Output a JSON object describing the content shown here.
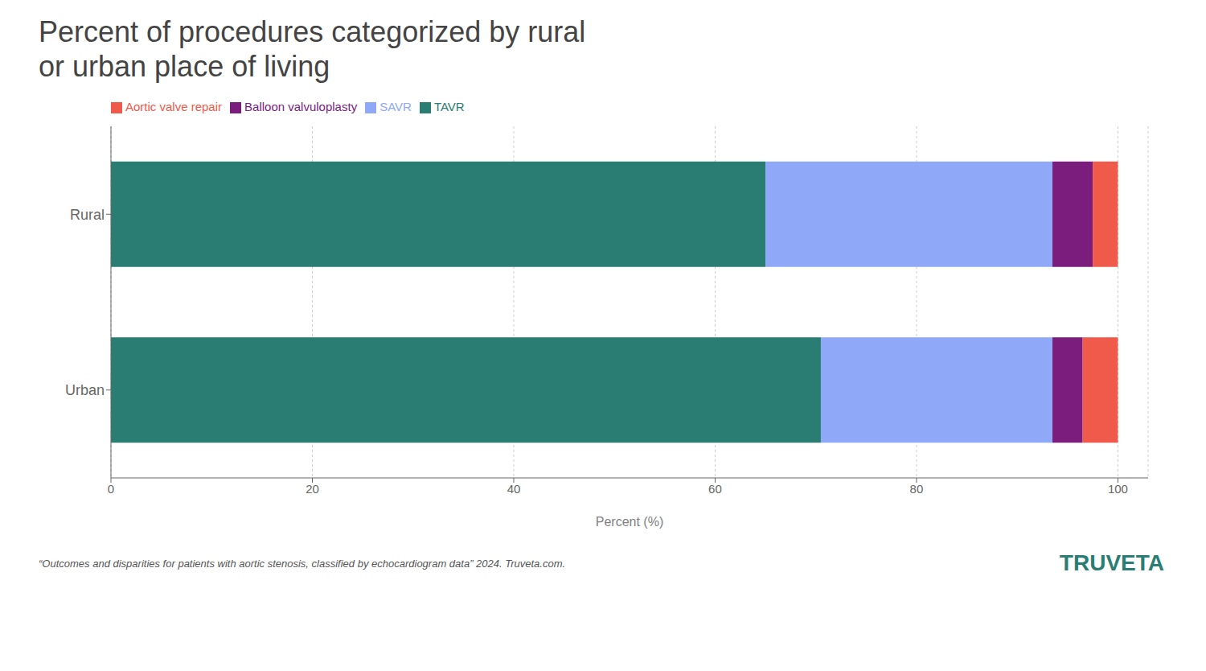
{
  "chart_data": {
    "type": "bar",
    "orientation": "horizontal",
    "stacked": true,
    "title": "Percent of procedures categorized by rural\nor urban place of living",
    "categories": [
      "Rural",
      "Urban"
    ],
    "series": [
      {
        "name": "TAVR",
        "color": "#2a7d72",
        "values": [
          65.0,
          70.5
        ]
      },
      {
        "name": "SAVR",
        "color": "#8fa8f8",
        "values": [
          28.5,
          23.0
        ]
      },
      {
        "name": "Balloon valvuloplasty",
        "color": "#7b1d7d",
        "values": [
          4.0,
          3.0
        ]
      },
      {
        "name": "Aortic valve repair",
        "color": "#f05a4a",
        "values": [
          2.5,
          3.5
        ]
      }
    ],
    "xlabel": "Percent (%)",
    "xlim": [
      0,
      103
    ],
    "xticks": [
      0,
      20,
      40,
      60,
      80,
      100
    ],
    "grid": true,
    "legend": "top",
    "caption": "“Outcomes and disparities for patients with aortic stenosis, classified by echocardiogram data” 2024. Truveta.com.",
    "annotations": [
      {
        "text": "TRUVETA",
        "color": "#2a7d72"
      }
    ]
  }
}
